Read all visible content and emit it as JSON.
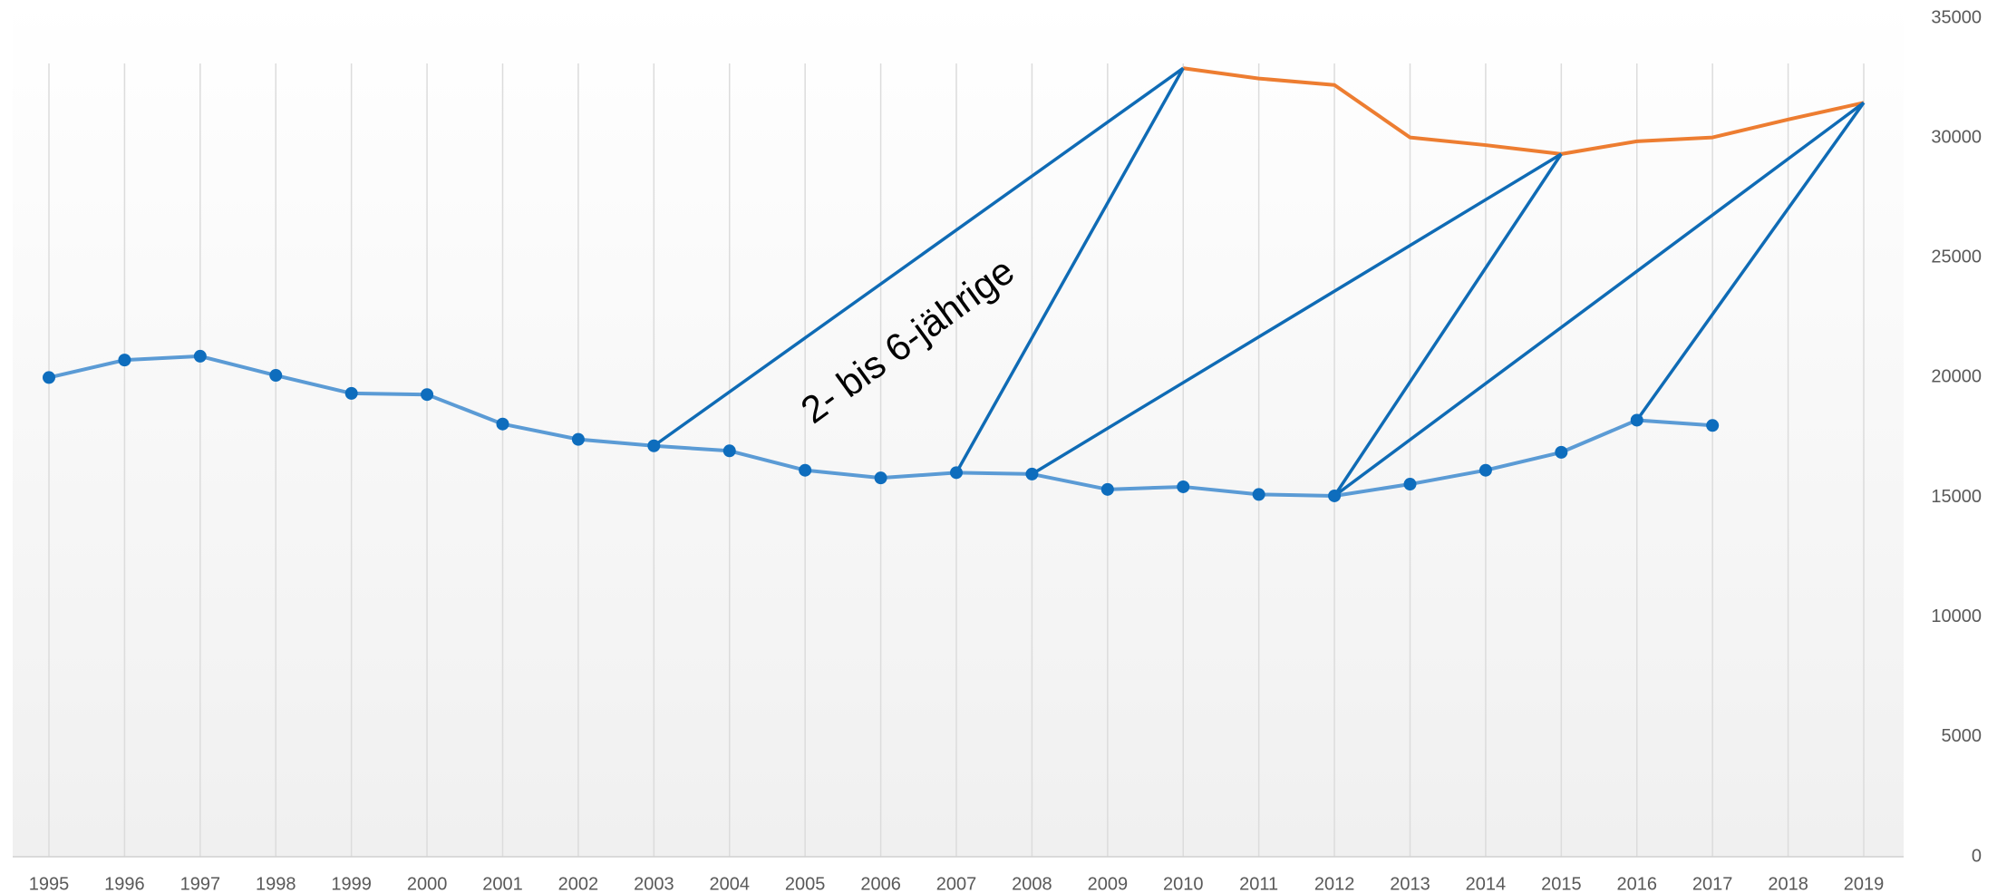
{
  "chart_data": {
    "type": "line",
    "annotation": "2- bis 6-jährige",
    "categories": [
      "1995",
      "1996",
      "1997",
      "1998",
      "1999",
      "2000",
      "2001",
      "2002",
      "2003",
      "2004",
      "2005",
      "2006",
      "2007",
      "2008",
      "2009",
      "2010",
      "2011",
      "2012",
      "2013",
      "2014",
      "2015",
      "2016",
      "2017",
      "2018",
      "2019"
    ],
    "series": [
      {
        "color": "#5b9bd5",
        "marker_color": "#0e6dbd",
        "values": [
          20000,
          20730,
          20890,
          20090,
          19340,
          19290,
          18060,
          17420,
          17150,
          16940,
          16130,
          15810,
          16030,
          15970,
          15330,
          15440,
          15120,
          15060,
          15550,
          16130,
          16880,
          18220,
          18000,
          null,
          null
        ]
      },
      {
        "color": "#ed7d31",
        "values": [
          null,
          null,
          null,
          null,
          null,
          null,
          null,
          null,
          null,
          null,
          null,
          null,
          null,
          null,
          null,
          32910,
          32480,
          32210,
          30020,
          29700,
          29330,
          29860,
          30020,
          30770,
          31470
        ]
      }
    ],
    "connector_color": "#0f6bb5",
    "ylim": [
      0,
      35000
    ],
    "yticks": [
      0,
      5000,
      10000,
      15000,
      20000,
      25000,
      30000,
      35000
    ],
    "grid": true
  }
}
